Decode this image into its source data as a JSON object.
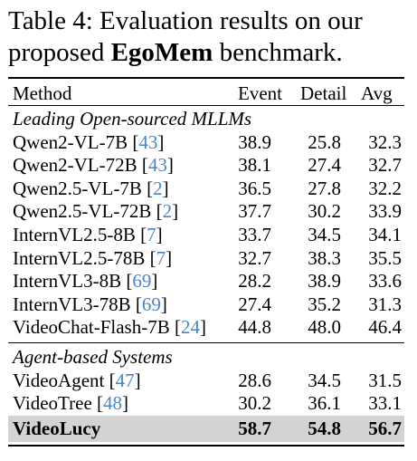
{
  "caption": {
    "prefix": "Table 4:  Evaluation results on our proposed",
    "bold": "EgoMem",
    "suffix": "benchmark."
  },
  "table": {
    "headers": [
      "Method",
      "Event",
      "Detail",
      "Avg"
    ],
    "sections": [
      {
        "title": "Leading Open-sourced MLLMs",
        "rows": [
          {
            "name": "Qwen2-VL-7B",
            "cite": "43",
            "event": "38.9",
            "detail": "25.8",
            "avg": "32.3"
          },
          {
            "name": "Qwen2-VL-72B",
            "cite": "43",
            "event": "38.1",
            "detail": "27.4",
            "avg": "32.7"
          },
          {
            "name": "Qwen2.5-VL-7B",
            "cite": "2",
            "event": "36.5",
            "detail": "27.8",
            "avg": "32.2"
          },
          {
            "name": "Qwen2.5-VL-72B",
            "cite": "2",
            "event": "37.7",
            "detail": "30.2",
            "avg": "33.9"
          },
          {
            "name": "InternVL2.5-8B",
            "cite": "7",
            "event": "33.7",
            "detail": "34.5",
            "avg": "34.1"
          },
          {
            "name": "InternVL2.5-78B",
            "cite": "7",
            "event": "32.7",
            "detail": "38.3",
            "avg": "35.5"
          },
          {
            "name": "InternVL3-8B",
            "cite": "69",
            "event": "28.2",
            "detail": "38.9",
            "avg": "33.6"
          },
          {
            "name": "InternVL3-78B",
            "cite": "69",
            "event": "27.4",
            "detail": "35.2",
            "avg": "31.3"
          },
          {
            "name": "VideoChat-Flash-7B",
            "cite": "24",
            "event": "44.8",
            "detail": "48.0",
            "avg": "46.4"
          }
        ]
      },
      {
        "title": "Agent-based Systems",
        "rows": [
          {
            "name": "VideoAgent",
            "cite": "47",
            "event": "28.6",
            "detail": "34.5",
            "avg": "31.5"
          },
          {
            "name": "VideoTree",
            "cite": "48",
            "event": "30.2",
            "detail": "36.1",
            "avg": "33.1"
          },
          {
            "name": "VideoLucy",
            "cite": "",
            "event": "58.7",
            "detail": "54.8",
            "avg": "56.7",
            "highlight": true
          }
        ]
      }
    ]
  }
}
